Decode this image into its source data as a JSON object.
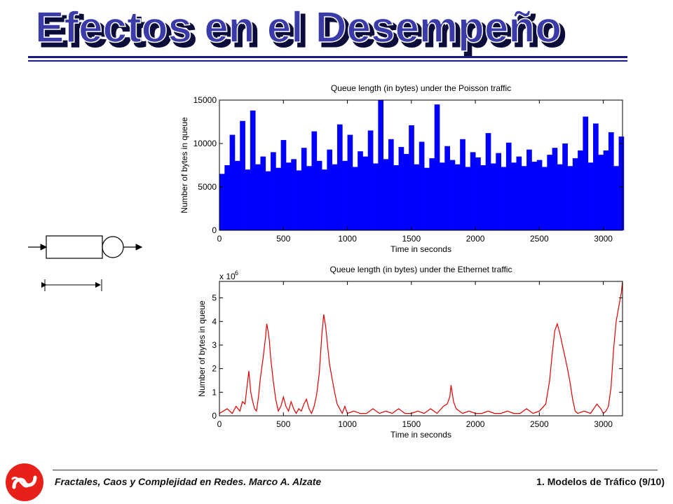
{
  "slide": {
    "title": "Efectos en el Desempeño",
    "footer_left": "Fractales, Caos y Complejidad en Redes. Marco A. Alzate",
    "footer_right": "1. Modelos de Tráfico  (9/10)"
  },
  "colors": {
    "title_fill": "#3a3aa8",
    "title_shadow": "#0c0c3a",
    "poisson": "#0000ff",
    "ethernet": "#dd0000",
    "logo": "#e8201a"
  },
  "chart_data": [
    {
      "type": "bar",
      "title": "Queue length (in bytes) under the Poisson traffic",
      "xlabel": "Time in seconds",
      "ylabel": "Number of bytes in queue",
      "xlim": [
        0,
        3150
      ],
      "ylim": [
        0,
        15000
      ],
      "xticks": [
        0,
        500,
        1000,
        1500,
        2000,
        2500,
        3000
      ],
      "yticks": [
        0,
        5000,
        10000,
        15000
      ],
      "ytick_labels": [
        "0",
        "5000",
        "10000",
        "15000"
      ],
      "series": [
        {
          "name": "Poisson",
          "x": [
            20,
            60,
            100,
            140,
            180,
            220,
            260,
            300,
            340,
            380,
            420,
            460,
            500,
            540,
            580,
            620,
            660,
            700,
            740,
            780,
            820,
            860,
            900,
            940,
            980,
            1020,
            1060,
            1100,
            1140,
            1180,
            1220,
            1260,
            1300,
            1340,
            1380,
            1420,
            1460,
            1500,
            1540,
            1580,
            1620,
            1660,
            1700,
            1740,
            1780,
            1820,
            1860,
            1900,
            1940,
            1980,
            2020,
            2060,
            2100,
            2140,
            2180,
            2220,
            2260,
            2300,
            2340,
            2380,
            2420,
            2460,
            2500,
            2540,
            2580,
            2620,
            2660,
            2700,
            2740,
            2780,
            2820,
            2860,
            2900,
            2940,
            2980,
            3020,
            3060,
            3100,
            3140
          ],
          "values": [
            6500,
            7500,
            11000,
            8000,
            12600,
            7000,
            13800,
            7600,
            8500,
            6800,
            9000,
            7200,
            10400,
            7800,
            8200,
            6900,
            9500,
            7400,
            11400,
            8000,
            7000,
            9300,
            7600,
            12200,
            8000,
            11000,
            7300,
            9100,
            8500,
            11500,
            7700,
            15000,
            8200,
            10500,
            7500,
            9600,
            8800,
            12100,
            7600,
            10200,
            7200,
            8300,
            14500,
            7800,
            9700,
            8100,
            7600,
            10500,
            7300,
            9000,
            8400,
            7500,
            11200,
            7700,
            8900,
            7300,
            10100,
            7800,
            8500,
            7400,
            9300,
            7900,
            8100,
            7300,
            8700,
            9500,
            7600,
            10000,
            7400,
            8300,
            9200,
            13100,
            7800,
            12300,
            8700,
            9200,
            11300,
            7400,
            10800
          ]
        }
      ]
    },
    {
      "type": "line",
      "title": "Queue length (in bytes) under the Ethernet traffic",
      "xlabel": "Time in seconds",
      "ylabel": "Number of bytes in queue",
      "multiplier_label": "x 10",
      "multiplier_exponent": "6",
      "xlim": [
        0,
        3150
      ],
      "ylim": [
        0,
        5.7
      ],
      "xticks": [
        0,
        500,
        1000,
        1500,
        2000,
        2500,
        3000
      ],
      "yticks": [
        0,
        1,
        2,
        3,
        4,
        5
      ],
      "series": [
        {
          "name": "Ethernet",
          "x": [
            0,
            30,
            60,
            100,
            130,
            160,
            180,
            200,
            215,
            230,
            245,
            260,
            275,
            290,
            305,
            320,
            340,
            360,
            370,
            380,
            390,
            400,
            420,
            440,
            460,
            480,
            500,
            520,
            540,
            560,
            580,
            600,
            620,
            640,
            660,
            680,
            700,
            720,
            740,
            760,
            780,
            790,
            800,
            815,
            830,
            845,
            860,
            880,
            900,
            920,
            940,
            960,
            980,
            1000,
            1050,
            1100,
            1150,
            1200,
            1250,
            1300,
            1350,
            1400,
            1450,
            1500,
            1550,
            1600,
            1650,
            1700,
            1750,
            1780,
            1800,
            1810,
            1830,
            1850,
            1900,
            1950,
            2000,
            2050,
            2100,
            2150,
            2200,
            2250,
            2300,
            2350,
            2400,
            2450,
            2500,
            2550,
            2580,
            2600,
            2620,
            2640,
            2660,
            2680,
            2700,
            2720,
            2740,
            2760,
            2780,
            2800,
            2850,
            2900,
            2950,
            2980,
            3000,
            3020,
            3040,
            3060,
            3080,
            3100,
            3120,
            3140,
            3150
          ],
          "values": [
            0.1,
            0.2,
            0.3,
            0.1,
            0.4,
            0.2,
            0.6,
            0.5,
            1.2,
            1.9,
            1.0,
            0.6,
            0.3,
            0.2,
            0.8,
            1.6,
            2.4,
            3.3,
            3.9,
            3.6,
            3.2,
            2.5,
            1.5,
            0.7,
            0.2,
            0.4,
            0.8,
            0.4,
            0.2,
            0.6,
            0.3,
            0.1,
            0.3,
            0.2,
            0.5,
            0.7,
            0.3,
            0.1,
            0.4,
            0.9,
            1.8,
            2.6,
            3.4,
            4.3,
            3.8,
            3.0,
            2.2,
            1.6,
            1.0,
            0.5,
            0.3,
            0.1,
            0.4,
            0.1,
            0.2,
            0.1,
            0.1,
            0.3,
            0.1,
            0.2,
            0.1,
            0.3,
            0.1,
            0.1,
            0.2,
            0.1,
            0.3,
            0.1,
            0.4,
            0.5,
            0.8,
            1.3,
            0.6,
            0.3,
            0.1,
            0.2,
            0.1,
            0.1,
            0.2,
            0.1,
            0.1,
            0.2,
            0.1,
            0.1,
            0.3,
            0.1,
            0.2,
            0.5,
            1.5,
            2.6,
            3.6,
            3.9,
            3.5,
            3.0,
            2.5,
            2.0,
            1.4,
            0.7,
            0.2,
            0.1,
            0.2,
            0.1,
            0.5,
            0.3,
            0.1,
            0.2,
            0.4,
            1.2,
            2.8,
            4.0,
            4.6,
            5.2,
            5.7
          ]
        }
      ]
    }
  ]
}
